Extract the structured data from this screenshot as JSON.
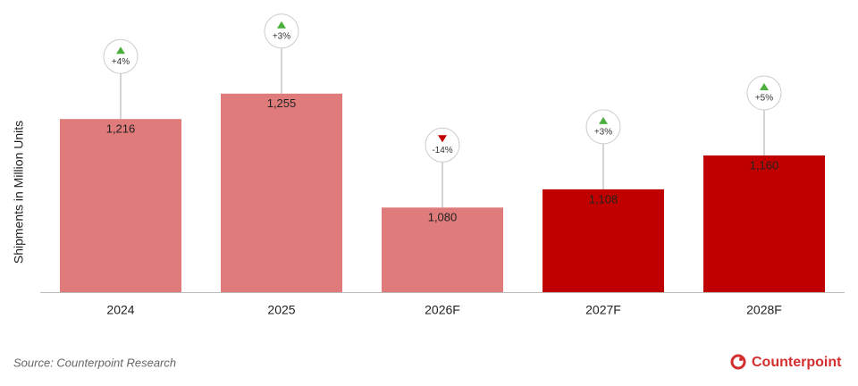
{
  "chart_data": {
    "type": "bar",
    "y_axis_label": "Shipments in Million Units",
    "categories": [
      "2024",
      "2025",
      "2026F",
      "2027F",
      "2028F"
    ],
    "values": [
      1216,
      1255,
      1080,
      1108,
      1160
    ],
    "value_labels": [
      "1,216",
      "1,255",
      "1,080",
      "1,108",
      "1,160"
    ],
    "colors": [
      "#e07b7b",
      "#e07b7b",
      "#e07b7b",
      "#c00000",
      "#c00000"
    ],
    "growth": [
      4,
      3,
      -14,
      3,
      5
    ],
    "growth_labels": [
      "+4%",
      "+3%",
      "-14%",
      "+3%",
      "+5%"
    ],
    "growth_colors": {
      "up": "#4caf3e",
      "down": "#c00000"
    },
    "ylim": [
      950,
      1300
    ],
    "source": "Source: Counterpoint Research",
    "brand": "Counterpoint"
  }
}
